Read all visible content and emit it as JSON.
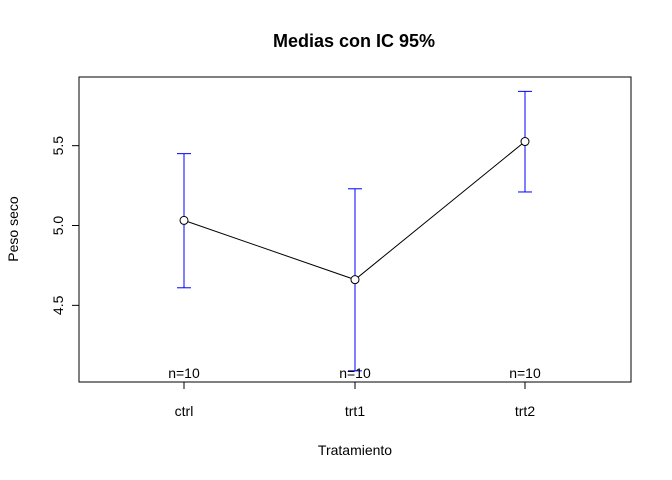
{
  "chart_data": {
    "type": "line",
    "title": "Medias con IC 95%",
    "xlabel": "Tratamiento",
    "ylabel": "Peso seco",
    "categories": [
      "ctrl",
      "trt1",
      "trt2"
    ],
    "series": [
      {
        "values": [
          5.032,
          4.661,
          5.526
        ],
        "ci_lower": [
          4.61,
          4.09,
          5.21
        ],
        "ci_upper": [
          5.45,
          5.23,
          5.84
        ],
        "n_labels": [
          "n=10",
          "n=10",
          "n=10"
        ]
      }
    ],
    "y_ticks": [
      "4.5",
      "5.0",
      "5.5"
    ],
    "ylim": [
      4.02,
      5.93
    ],
    "grid": false,
    "legend": "none",
    "colors": {
      "line": "#000000",
      "ci": "#0000ff",
      "point": "#000000"
    }
  }
}
